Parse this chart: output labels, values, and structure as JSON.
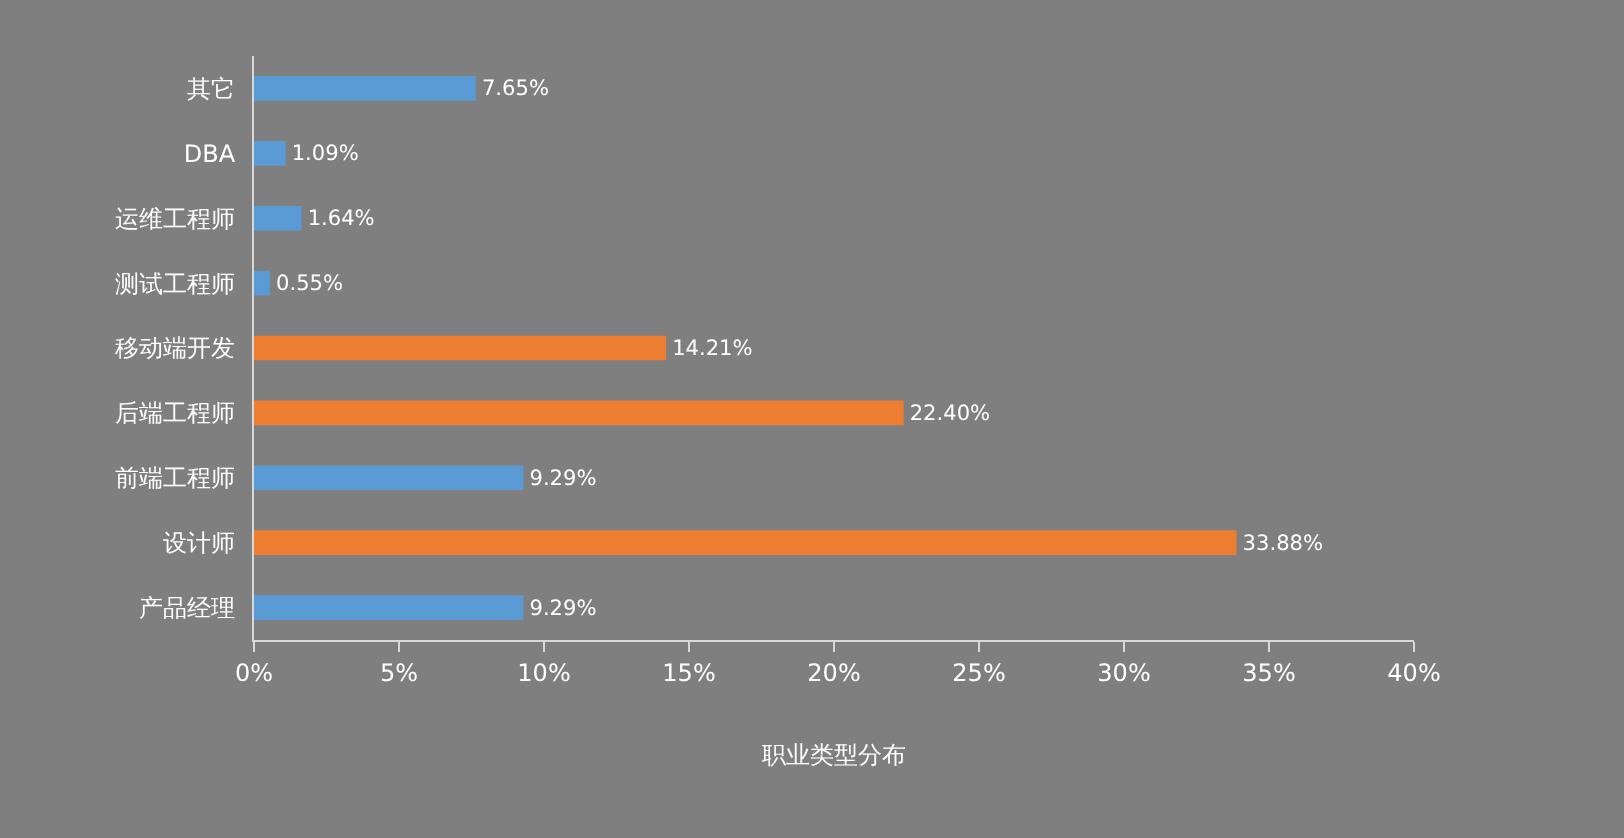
{
  "chart_data": {
    "type": "bar",
    "orientation": "horizontal",
    "xlabel": "职业类型分布",
    "categories": [
      "其它",
      "DBA",
      "运维工程师",
      "测试工程师",
      "移动端开发",
      "后端工程师",
      "前端工程师",
      "设计师",
      "产品经理"
    ],
    "values": [
      7.65,
      1.09,
      1.64,
      0.55,
      14.21,
      22.4,
      9.29,
      33.88,
      9.29
    ],
    "colors": [
      "#5b9bd5",
      "#5b9bd5",
      "#5b9bd5",
      "#5b9bd5",
      "#ed7d31",
      "#ed7d31",
      "#5b9bd5",
      "#ed7d31",
      "#5b9bd5"
    ],
    "value_labels": [
      "7.65%",
      "1.09%",
      "1.64%",
      "0.55%",
      "14.21%",
      "22.40%",
      "9.29%",
      "33.88%",
      "9.29%"
    ],
    "xlim": [
      0,
      40
    ],
    "xticks": [
      {
        "value": 0,
        "label": "0%"
      },
      {
        "value": 5,
        "label": "5%"
      },
      {
        "value": 10,
        "label": "10%"
      },
      {
        "value": 15,
        "label": "15%"
      },
      {
        "value": 20,
        "label": "20%"
      },
      {
        "value": 25,
        "label": "25%"
      },
      {
        "value": 30,
        "label": "30%"
      },
      {
        "value": 35,
        "label": "35%"
      },
      {
        "value": 40,
        "label": "40%"
      }
    ]
  }
}
